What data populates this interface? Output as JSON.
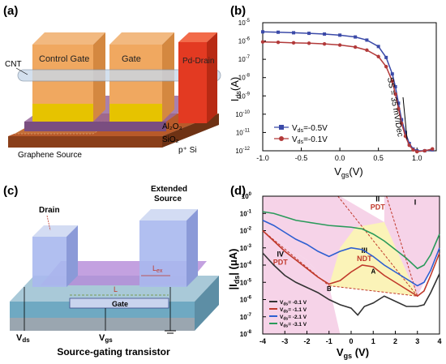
{
  "panels": {
    "a": {
      "label": "(a)",
      "labels": {
        "cnt": "CNT",
        "control_gate": "Control Gate",
        "gate": "Gate",
        "pd_drain": "Pd-Drain",
        "al2o3": "Al₂O₃",
        "sio2": "SiO₂",
        "psi": "p⁺ Si",
        "graphene": "Graphene Source"
      }
    },
    "c": {
      "label": "(c)",
      "labels": {
        "drain": "Drain",
        "extended_source_1": "Extended",
        "extended_source_2": "Source",
        "lex": "L",
        "lex_sub": "ex",
        "l": "L",
        "gate": "Gate",
        "vds": "V",
        "vds_sub": "ds",
        "vgs": "V",
        "vgs_sub": "gs",
        "caption": "Source-gating transistor"
      }
    }
  },
  "chart_data": [
    {
      "panel": "b",
      "label": "(b)",
      "type": "line",
      "title": "",
      "xlabel": "V",
      "xlabel_sub": "gs",
      "xlabel_unit": "(V)",
      "ylabel": "I",
      "ylabel_sub": "ds",
      "ylabel_unit": "(A)",
      "xlim": [
        -1.0,
        1.25
      ],
      "ylim_exp": [
        -12,
        -5
      ],
      "y_scale": "log",
      "xticks": [
        "-1.0",
        "-0.5",
        "0.0",
        "0.5",
        "1.0"
      ],
      "xtick_values": [
        -1.0,
        -0.5,
        0.0,
        0.5,
        1.0
      ],
      "yticks": [
        "10",
        "10",
        "10",
        "10",
        "10",
        "10",
        "10",
        "10"
      ],
      "ytick_exps": [
        "-5",
        "-6",
        "-7",
        "-8",
        "-9",
        "-10",
        "-11",
        "-12"
      ],
      "annotation": "SS = 35 mV/Dec",
      "legend_position": "bottom-left",
      "series": [
        {
          "name": "V",
          "name_sub": "ds",
          "name_val": "=-0.5V",
          "color": "#3b4aa8",
          "marker": "square",
          "x": [
            -1.0,
            -0.8,
            -0.6,
            -0.4,
            -0.2,
            0.0,
            0.2,
            0.35,
            0.5,
            0.6,
            0.68,
            0.72,
            0.76,
            0.8,
            0.85,
            0.9,
            0.95,
            1.0,
            1.1,
            1.2
          ],
          "log_y": [
            -5.5,
            -5.52,
            -5.55,
            -5.58,
            -5.62,
            -5.68,
            -5.78,
            -5.95,
            -6.3,
            -6.9,
            -7.8,
            -8.5,
            -9.4,
            -10.3,
            -11.0,
            -11.6,
            -11.9,
            -12.0,
            -12.0,
            -11.95
          ]
        },
        {
          "name": "V",
          "name_sub": "ds",
          "name_val": "=-0.1V",
          "color": "#b23a3a",
          "marker": "circle",
          "x": [
            -1.0,
            -0.8,
            -0.6,
            -0.4,
            -0.2,
            0.0,
            0.2,
            0.35,
            0.5,
            0.6,
            0.68,
            0.72,
            0.76,
            0.8,
            0.85,
            0.9,
            0.95,
            1.0,
            1.1,
            1.2
          ],
          "log_y": [
            -6.05,
            -6.07,
            -6.1,
            -6.12,
            -6.16,
            -6.22,
            -6.33,
            -6.5,
            -6.85,
            -7.4,
            -8.2,
            -8.9,
            -9.7,
            -10.5,
            -11.2,
            -11.7,
            -11.95,
            -12.05,
            -12.0,
            -11.9
          ]
        }
      ]
    },
    {
      "panel": "d",
      "label": "(d)",
      "type": "line",
      "title": "",
      "xlabel": "V",
      "xlabel_sub": "gs",
      "xlabel_unit": " (V)",
      "ylabel": "|I",
      "ylabel_sub": "ds",
      "ylabel_unit": "| (μA)",
      "xlim": [
        -4,
        4
      ],
      "ylim_exp": [
        -8,
        0
      ],
      "y_scale": "log",
      "xticks": [
        "-4",
        "-3",
        "-2",
        "-1",
        "0",
        "1",
        "2",
        "3",
        "4"
      ],
      "xtick_values": [
        -4,
        -3,
        -2,
        -1,
        0,
        1,
        2,
        3,
        4
      ],
      "yticks": [
        "10",
        "10",
        "10",
        "10",
        "10",
        "10",
        "10",
        "10",
        "10"
      ],
      "ytick_exps": [
        "0",
        "-1",
        "-2",
        "-3",
        "-4",
        "-5",
        "-6",
        "-7",
        "-8"
      ],
      "regions": [
        {
          "name": "I",
          "color": "#f6d3e8"
        },
        {
          "name": "II",
          "sub": "PDT",
          "color": "#f6d3e8"
        },
        {
          "name": "III",
          "sub": "NDT",
          "color": "#fbf3b8"
        },
        {
          "name": "IV",
          "sub": "PDT",
          "color": "#f6d3e8"
        }
      ],
      "point_labels": [
        "A",
        "B"
      ],
      "legend_position": "bottom-left",
      "series": [
        {
          "name": "V",
          "name_sub": "ds",
          "name_val": "= -0.1 V",
          "color": "#333333",
          "x": [
            -4,
            -3.5,
            -3,
            -2.5,
            -2,
            -1.5,
            -1,
            -0.5,
            0,
            0.3,
            0.6,
            1,
            1.5,
            2,
            2.5,
            3,
            3.3,
            3.6,
            4
          ],
          "log_y": [
            -3.3,
            -4.0,
            -4.6,
            -5.0,
            -5.3,
            -5.6,
            -6.0,
            -6.3,
            -6.5,
            -6.9,
            -6.4,
            -6.2,
            -5.8,
            -6.1,
            -6.4,
            -6.4,
            -6.3,
            -5.6,
            -4.5
          ]
        },
        {
          "name": "V",
          "name_sub": "ds",
          "name_val": "= -1.1 V",
          "color": "#c0392b",
          "x": [
            -4,
            -3.5,
            -3,
            -2.5,
            -2,
            -1.5,
            -1,
            -0.5,
            0,
            0.5,
            1,
            1.5,
            2,
            2.5,
            3,
            3.3,
            3.6,
            4
          ],
          "log_y": [
            -2.0,
            -2.6,
            -3.2,
            -3.7,
            -4.2,
            -4.7,
            -5.1,
            -4.9,
            -4.4,
            -4.0,
            -4.1,
            -4.6,
            -5.0,
            -5.4,
            -5.8,
            -5.5,
            -4.6,
            -3.3
          ]
        },
        {
          "name": "V",
          "name_sub": "ds",
          "name_val": "= -2.1 V",
          "color": "#2e5fd1",
          "x": [
            -4,
            -3.5,
            -3,
            -2.5,
            -2,
            -1.5,
            -1,
            -0.5,
            0,
            0.5,
            1,
            1.5,
            2,
            2.5,
            3,
            3.3,
            3.6,
            4
          ],
          "log_y": [
            -1.4,
            -1.7,
            -2.1,
            -2.5,
            -2.8,
            -3.2,
            -3.5,
            -3.2,
            -3.0,
            -3.1,
            -3.5,
            -4.0,
            -4.4,
            -4.8,
            -5.2,
            -5.0,
            -4.3,
            -3.0
          ]
        },
        {
          "name": "V",
          "name_sub": "ds",
          "name_val": "= -3.1 V",
          "color": "#2a9a5a",
          "x": [
            -4,
            -3.5,
            -3,
            -2.5,
            -2,
            -1.5,
            -1,
            -0.5,
            0,
            0.5,
            1,
            1.5,
            2,
            2.5,
            3,
            3.3,
            3.6,
            4
          ],
          "log_y": [
            -0.9,
            -1.0,
            -1.2,
            -1.4,
            -1.5,
            -1.6,
            -1.7,
            -1.75,
            -1.8,
            -1.9,
            -2.2,
            -2.6,
            -3.1,
            -3.6,
            -4.2,
            -4.0,
            -3.4,
            -2.2
          ]
        }
      ]
    }
  ]
}
